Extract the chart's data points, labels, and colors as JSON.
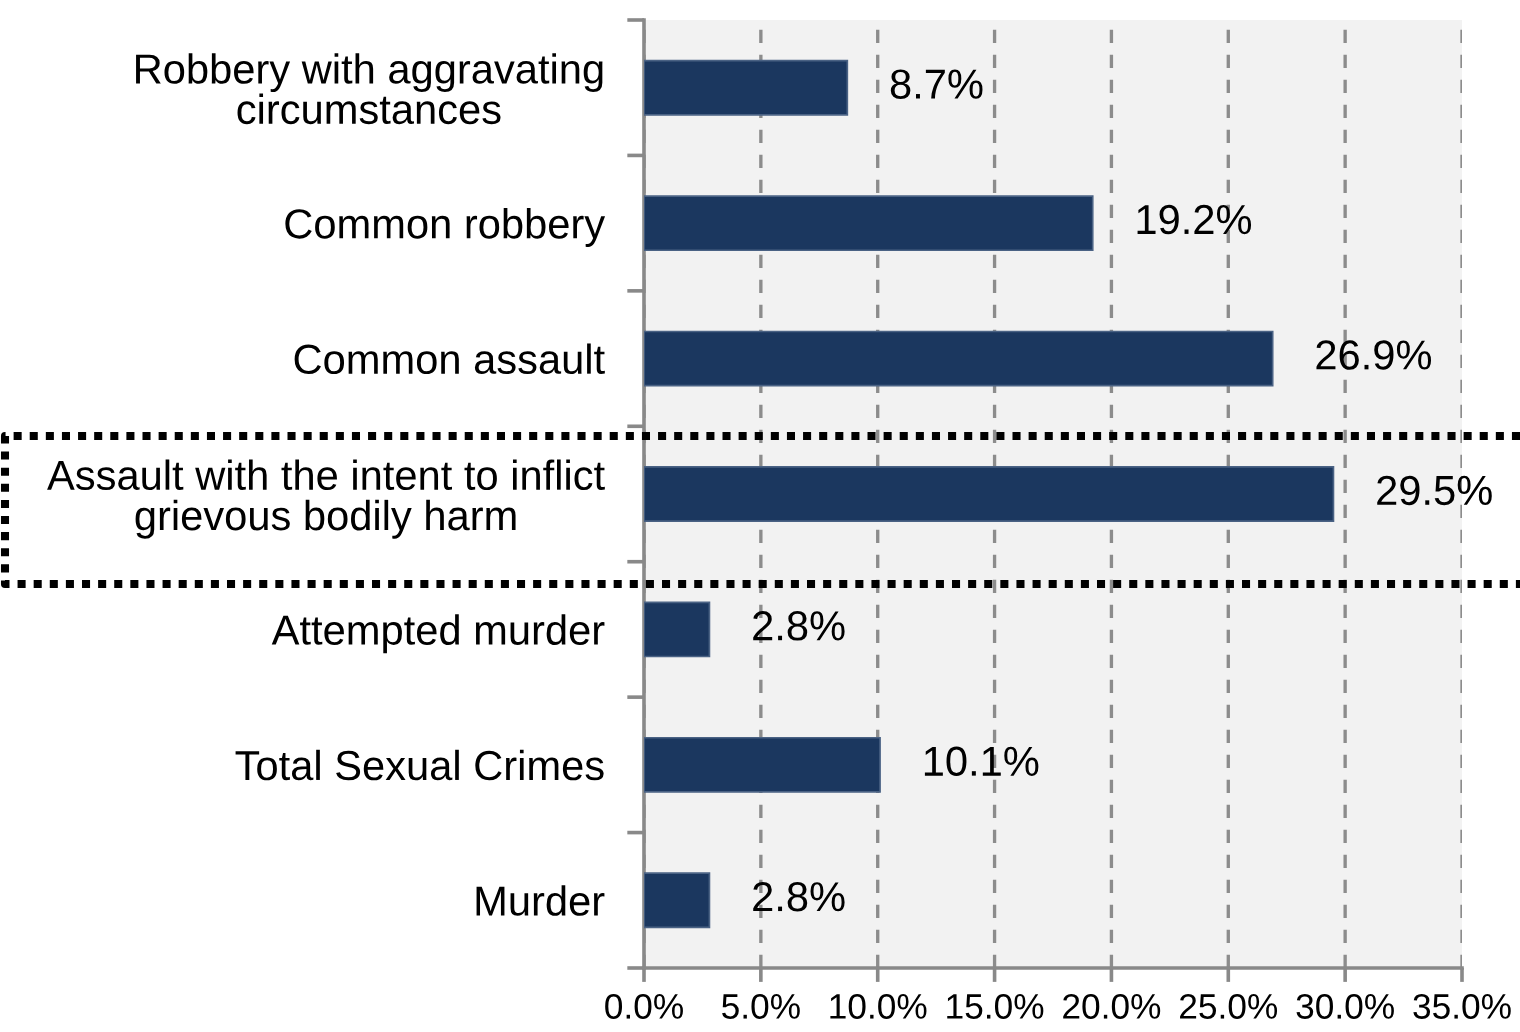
{
  "chart_data": {
    "type": "bar",
    "orientation": "horizontal",
    "categories": [
      "Robbery with aggravating\ncircumstances",
      "Common robbery",
      "Common assault",
      "Assault with the intent to inflict\ngrievous bodily harm",
      "Attempted murder",
      "Total Sexual Crimes",
      "Murder"
    ],
    "values": [
      8.7,
      19.2,
      26.9,
      29.5,
      2.8,
      10.1,
      2.8
    ],
    "value_labels": [
      "8.7%",
      "19.2%",
      "26.9%",
      "29.5%",
      "2.8%",
      "10.1%",
      "2.8%"
    ],
    "color": "#1b375f",
    "xlim": [
      0,
      35
    ],
    "xticks": [
      {
        "value": 0,
        "label": "0.0%"
      },
      {
        "value": 5,
        "label": "5.0%"
      },
      {
        "value": 10,
        "label": "10.0%"
      },
      {
        "value": 15,
        "label": "15.0%"
      },
      {
        "value": 20,
        "label": "20.0%"
      },
      {
        "value": 25,
        "label": "25.0%"
      },
      {
        "value": 30,
        "label": "30.0%"
      },
      {
        "value": 35,
        "label": "35.0%"
      }
    ],
    "grid": "x"
  }
}
